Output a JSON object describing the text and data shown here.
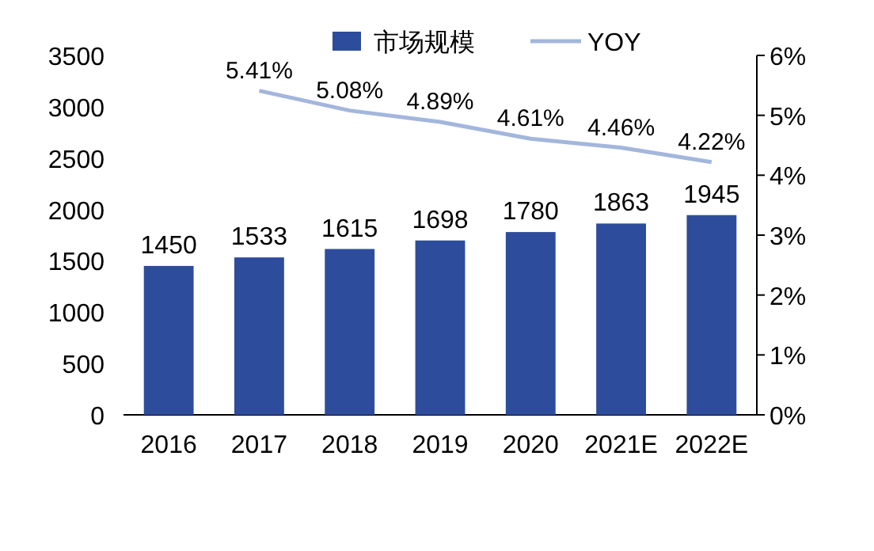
{
  "chart_data": {
    "type": "bar",
    "categories": [
      "2016",
      "2017",
      "2018",
      "2019",
      "2020",
      "2021E",
      "2022E"
    ],
    "series": [
      {
        "name": "市场规模",
        "color": "#2e4c9c",
        "values": [
          1450,
          1533,
          1615,
          1698,
          1780,
          1863,
          1945
        ],
        "value_labels": [
          "1450",
          "1533",
          "1615",
          "1698",
          "1780",
          "1863",
          "1945"
        ]
      },
      {
        "name": "YOY",
        "type": "line",
        "axis": "y2",
        "color": "#a3b6dc",
        "values": [
          null,
          5.41,
          5.08,
          4.89,
          4.61,
          4.46,
          4.22
        ],
        "value_labels": [
          null,
          "5.41%",
          "5.08%",
          "4.89%",
          "4.61%",
          "4.46%",
          "4.22%"
        ]
      }
    ],
    "ylim": [
      0,
      3500
    ],
    "yticks": [
      0,
      500,
      1000,
      1500,
      2000,
      2500,
      3000,
      3500
    ],
    "y2lim": [
      0,
      6
    ],
    "y2ticks": [
      {
        "value": 0,
        "label": "0%"
      },
      {
        "value": 1,
        "label": "1%"
      },
      {
        "value": 2,
        "label": "2%"
      },
      {
        "value": 3,
        "label": "3%"
      },
      {
        "value": 4,
        "label": "4%"
      },
      {
        "value": 5,
        "label": "5%"
      },
      {
        "value": 6,
        "label": "6%"
      }
    ],
    "legend": "top",
    "grid": false
  }
}
